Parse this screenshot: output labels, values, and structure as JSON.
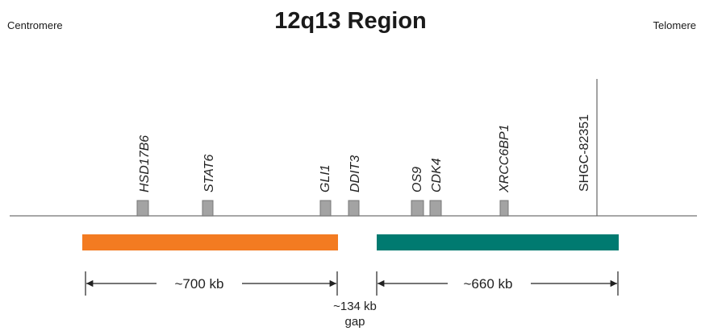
{
  "title": "12q13 Region",
  "left_end_label": "Centromere",
  "right_end_label": "Telomere",
  "colors": {
    "axis": "#8a8a8a",
    "gene_box_fill": "#a3a3a3",
    "gene_box_stroke": "#777777",
    "left_segment": "#f37b21",
    "right_segment": "#007a70",
    "text": "#222222"
  },
  "genes": [
    {
      "label": "HSD17B6",
      "italic": true
    },
    {
      "label": "STAT6",
      "italic": true
    },
    {
      "label": "GLI1",
      "italic": true
    },
    {
      "label": "DDIT3",
      "italic": true
    },
    {
      "label": "OS9",
      "italic": true
    },
    {
      "label": "CDK4",
      "italic": true
    },
    {
      "label": "XRCC6BP1",
      "italic": true
    }
  ],
  "marker": {
    "label": "SHGC-82351"
  },
  "segments": [
    {
      "name": "left",
      "span_label": "~700 kb"
    },
    {
      "name": "right",
      "span_label": "~660 kb"
    }
  ],
  "gap": {
    "size_label": "~134 kb",
    "word": "gap"
  }
}
